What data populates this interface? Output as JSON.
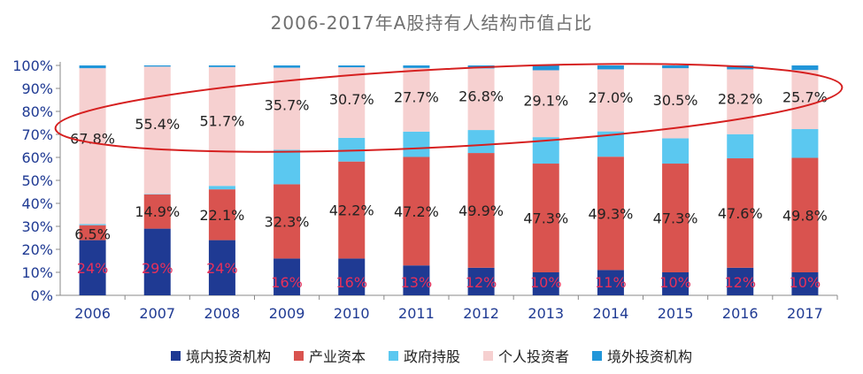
{
  "chart_data": {
    "type": "bar",
    "stacked": true,
    "title": "2006-2017年A股持有人结构市值占比",
    "xlabel": "",
    "ylabel": "",
    "ylim": [
      0,
      100
    ],
    "y_ticks": [
      "0%",
      "10%",
      "20%",
      "30%",
      "40%",
      "50%",
      "60%",
      "70%",
      "80%",
      "90%",
      "100%"
    ],
    "categories": [
      "2006",
      "2007",
      "2008",
      "2009",
      "2010",
      "2011",
      "2012",
      "2013",
      "2014",
      "2015",
      "2016",
      "2017"
    ],
    "series": [
      {
        "name": "境内投资机构",
        "color": "#1f3a93",
        "values": [
          24,
          29,
          24,
          16,
          16,
          13,
          12,
          10,
          11,
          10,
          12,
          10
        ],
        "labels": [
          "24%",
          "29%",
          "24%",
          "16%",
          "16%",
          "13%",
          "12%",
          "10%",
          "11%",
          "10%",
          "12%",
          "10%"
        ],
        "label_color": "#e8305a"
      },
      {
        "name": "产业资本",
        "color": "#d9534f",
        "values": [
          6.5,
          14.9,
          22.1,
          32.3,
          42.2,
          47.2,
          49.9,
          47.3,
          49.3,
          47.3,
          47.6,
          49.8
        ],
        "labels": [
          "6.5%",
          "14.9%",
          "22.1%",
          "32.3%",
          "42.2%",
          "47.2%",
          "49.9%",
          "47.3%",
          "49.3%",
          "47.3%",
          "47.6%",
          "49.8%"
        ],
        "label_color": "#222222"
      },
      {
        "name": "政府持股",
        "color": "#5bc8f0",
        "values": [
          0.5,
          0.2,
          1.5,
          15.0,
          10.3,
          11.0,
          10.0,
          11.5,
          11.0,
          11.0,
          10.5,
          12.5
        ]
      },
      {
        "name": "个人投资者",
        "color": "#f6d0d0",
        "values": [
          67.8,
          55.4,
          51.7,
          35.7,
          30.7,
          27.7,
          26.8,
          29.1,
          27.0,
          30.5,
          28.2,
          25.7
        ],
        "labels": [
          "67.8%",
          "55.4%",
          "51.7%",
          "35.7%",
          "30.7%",
          "27.7%",
          "26.8%",
          "29.1%",
          "27.0%",
          "30.5%",
          "28.2%",
          "25.7%"
        ],
        "label_color": "#222222"
      },
      {
        "name": "境外投资机构",
        "color": "#2196d9",
        "values": [
          1.2,
          0.5,
          0.7,
          1.0,
          0.8,
          1.1,
          1.3,
          2.1,
          1.7,
          1.2,
          1.7,
          2.0
        ]
      }
    ],
    "legend_position": "bottom",
    "annotation": "red ellipse highlighting 个人投资者 share"
  }
}
